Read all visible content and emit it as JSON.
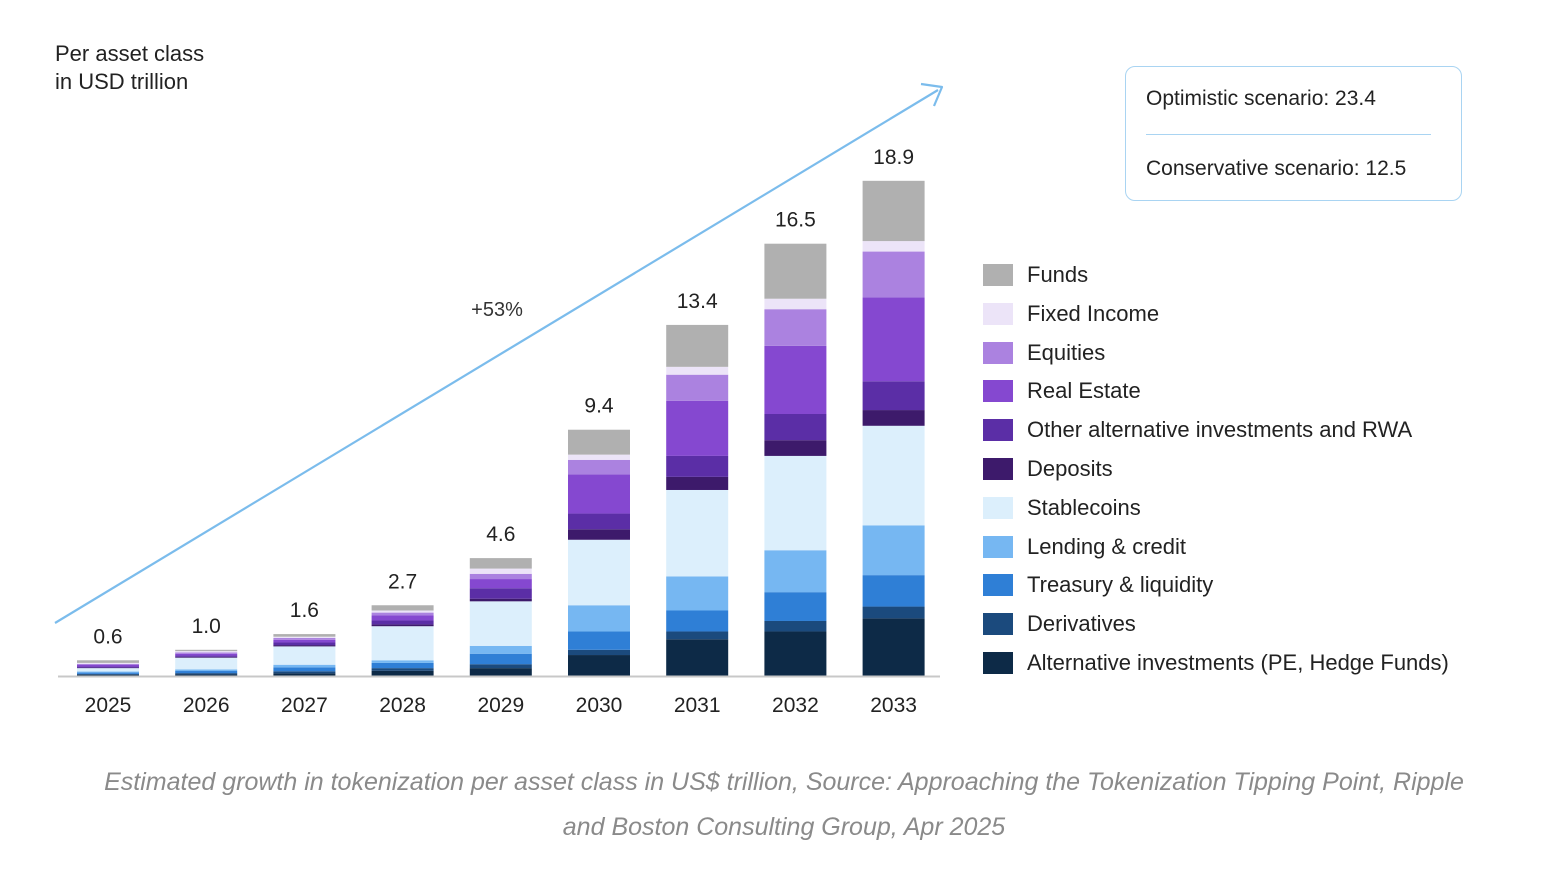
{
  "chart_data": {
    "type": "bar",
    "stacked": true,
    "ylabel_line1": "Per asset class",
    "ylabel_line2": "in USD trillion",
    "categories": [
      "2025",
      "2026",
      "2027",
      "2028",
      "2029",
      "2030",
      "2031",
      "2032",
      "2033"
    ],
    "totals": [
      0.6,
      1.0,
      1.6,
      2.7,
      4.6,
      9.4,
      13.4,
      16.5,
      18.9
    ],
    "total_labels": [
      "0.6",
      "1.0",
      "1.6",
      "2.7",
      "4.6",
      "9.4",
      "13.4",
      "16.5",
      "18.9"
    ],
    "series": [
      {
        "name": "Alternative investments (PE, Hedge Funds)",
        "color": "#0d2a47",
        "values": [
          0.05,
          0.06,
          0.1,
          0.2,
          0.3,
          0.8,
          1.4,
          1.7,
          2.2
        ]
      },
      {
        "name": "Derivatives",
        "color": "#1b4a7d",
        "values": [
          0.03,
          0.05,
          0.08,
          0.1,
          0.15,
          0.2,
          0.3,
          0.4,
          0.45
        ]
      },
      {
        "name": "Treasury & liquidity",
        "color": "#2f7fd6",
        "values": [
          0.05,
          0.08,
          0.15,
          0.2,
          0.4,
          0.7,
          0.8,
          1.1,
          1.2
        ]
      },
      {
        "name": "Lending & credit",
        "color": "#76b7f2",
        "values": [
          0.04,
          0.06,
          0.1,
          0.1,
          0.3,
          1.0,
          1.3,
          1.6,
          1.9
        ]
      },
      {
        "name": "Stablecoins",
        "color": "#dceffc",
        "values": [
          0.13,
          0.45,
          0.7,
          1.3,
          1.7,
          2.5,
          3.3,
          3.6,
          3.8
        ]
      },
      {
        "name": "Deposits",
        "color": "#3d1a6b",
        "values": [
          0.02,
          0.03,
          0.05,
          0.07,
          0.1,
          0.4,
          0.5,
          0.6,
          0.6
        ]
      },
      {
        "name": "Other alternative investments and RWA",
        "color": "#5b2ea6",
        "values": [
          0.04,
          0.05,
          0.1,
          0.15,
          0.4,
          0.6,
          0.8,
          1.0,
          1.1
        ]
      },
      {
        "name": "Real Estate",
        "color": "#8548d0",
        "values": [
          0.06,
          0.07,
          0.1,
          0.2,
          0.35,
          1.5,
          2.1,
          2.6,
          3.2
        ]
      },
      {
        "name": "Equities",
        "color": "#ab82e0",
        "values": [
          0.04,
          0.05,
          0.07,
          0.1,
          0.2,
          0.55,
          1.0,
          1.4,
          1.75
        ]
      },
      {
        "name": "Fixed Income",
        "color": "#ece4f8",
        "values": [
          0.04,
          0.05,
          0.05,
          0.08,
          0.2,
          0.2,
          0.3,
          0.4,
          0.4
        ]
      },
      {
        "name": "Funds",
        "color": "#b0b0b0",
        "values": [
          0.1,
          0.05,
          0.1,
          0.2,
          0.4,
          0.95,
          1.6,
          2.1,
          2.3
        ]
      }
    ],
    "ylim": [
      0,
      19.5
    ],
    "growth_annotation": "+53%",
    "legend_position": "right",
    "grid": false
  },
  "scenarios": {
    "optimistic": "Optimistic scenario: 23.4",
    "conservative": "Conservative scenario: 12.5"
  },
  "caption": {
    "line1": "Estimated growth in tokenization per asset class in US$ trillion, Source: Approaching the Tokenization Tipping Point, Ripple",
    "line2": "and Boston Consulting Group, Apr 2025"
  },
  "colors": {
    "arrow": "#7bbcec",
    "axis": "#c8c8c8",
    "box_border": "#a9d4f2"
  }
}
